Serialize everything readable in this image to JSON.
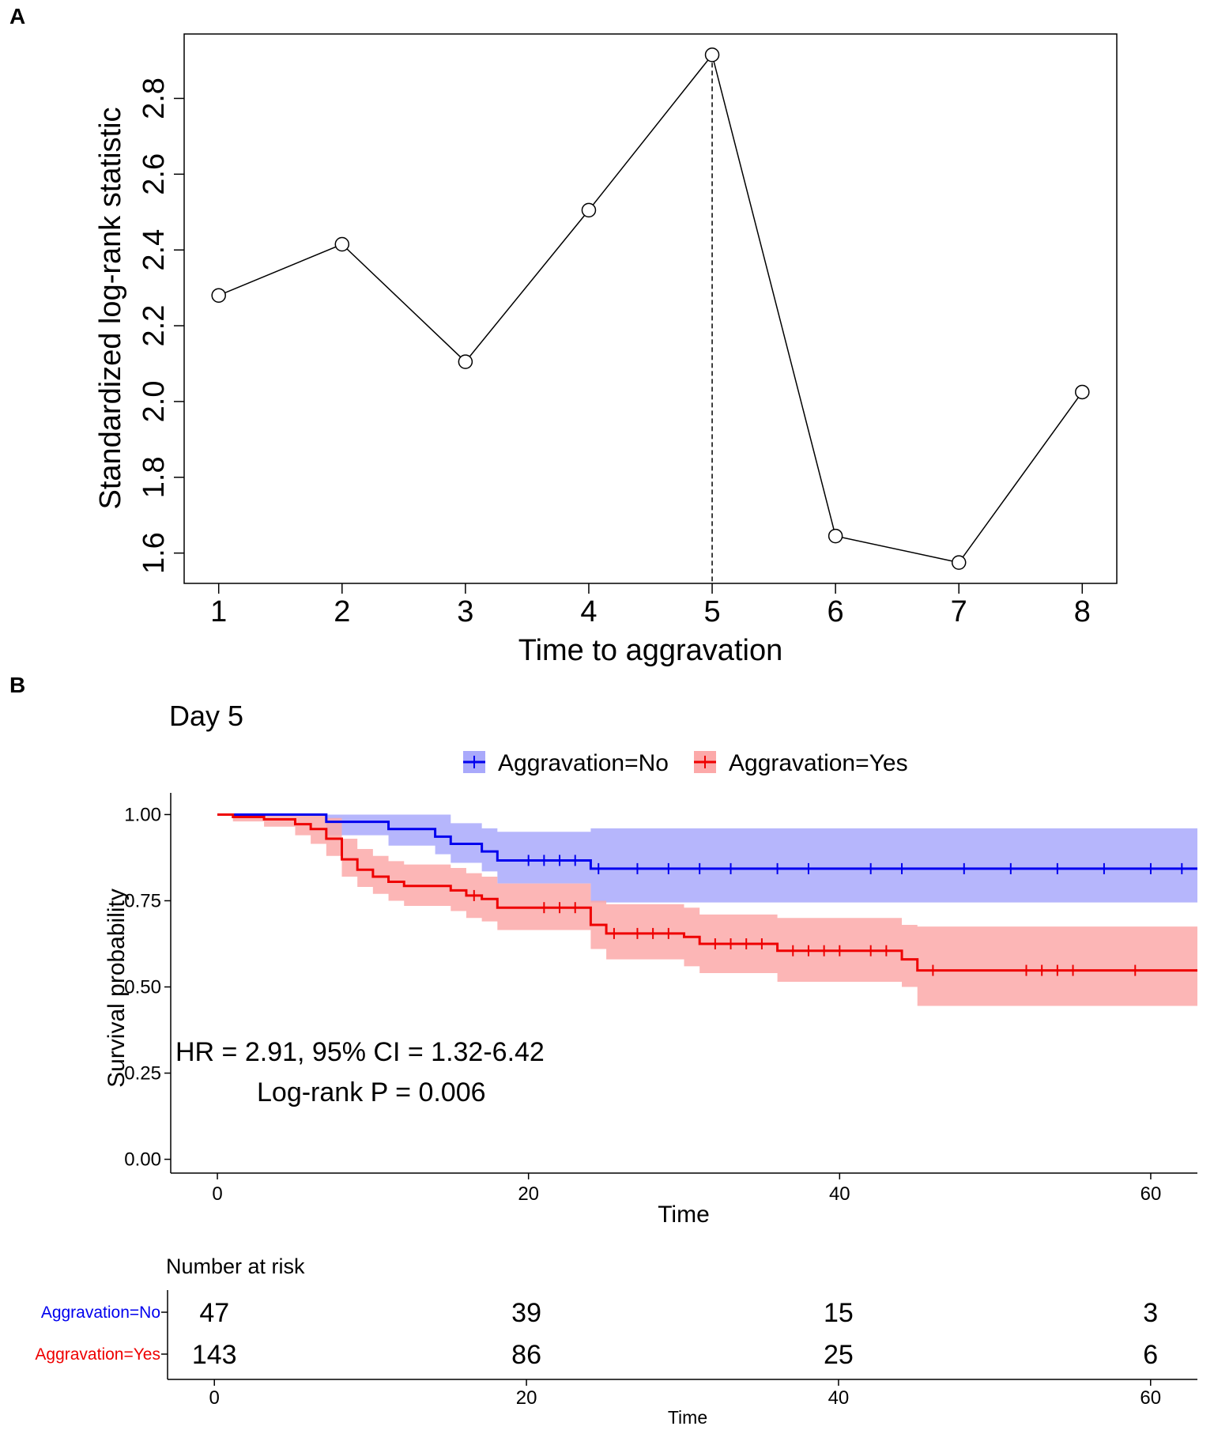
{
  "chart_data": [
    {
      "panel": "A",
      "type": "line",
      "title": "",
      "xlabel": "Time to aggravation",
      "ylabel": "Standardized log-rank statistic",
      "x": [
        1,
        2,
        3,
        4,
        5,
        6,
        7,
        8
      ],
      "y": [
        2.28,
        2.415,
        2.105,
        2.505,
        2.915,
        1.645,
        1.575,
        2.025
      ],
      "xlim": [
        0.72,
        8.28
      ],
      "ylim": [
        1.52,
        2.97
      ],
      "xticks": [
        "1",
        "2",
        "3",
        "4",
        "5",
        "6",
        "7",
        "8"
      ],
      "yticks": [
        "1.6",
        "1.8",
        "2.0",
        "2.2",
        "2.4",
        "2.6",
        "2.8"
      ],
      "cutoff_x": 5
    },
    {
      "panel": "B",
      "type": "line",
      "subtype": "kaplan-meier",
      "title": "Day 5",
      "xlabel": "Time",
      "ylabel": "Survival probability",
      "xlim": [
        -3,
        63
      ],
      "ylim": [
        -0.04,
        1.04
      ],
      "xticks": [
        "0",
        "20",
        "40",
        "60"
      ],
      "yticks": [
        "0.00",
        "0.25",
        "0.50",
        "0.75",
        "1.00"
      ],
      "legend": {
        "placement": "top",
        "entries": [
          "Aggravation=No",
          "Aggravation=Yes"
        ]
      },
      "annotations": {
        "hr": "HR = 2.91, 95% CI = 1.32-6.42",
        "p": "Log-rank P = 0.006"
      },
      "series": [
        {
          "name": "Aggravation=No",
          "color": "#0000ee",
          "ci_color": "#a9a9fb",
          "times": [
            0,
            7,
            11,
            14,
            15,
            17,
            18,
            24,
            63
          ],
          "surv": [
            1.0,
            0.979,
            0.958,
            0.936,
            0.915,
            0.893,
            0.867,
            0.843,
            0.843
          ],
          "lower": [
            1.0,
            0.94,
            0.91,
            0.885,
            0.86,
            0.835,
            0.8,
            0.745,
            0.745
          ],
          "upper": [
            1.0,
            1.0,
            1.0,
            1.0,
            0.975,
            0.96,
            0.95,
            0.96,
            0.96
          ],
          "censor_times": [
            20,
            21,
            22,
            23,
            24.5,
            27,
            29,
            31,
            33,
            36,
            38,
            42,
            44,
            48,
            51,
            54,
            57,
            60,
            62
          ],
          "censor_surv": [
            0.867,
            0.867,
            0.867,
            0.867,
            0.843,
            0.843,
            0.843,
            0.843,
            0.843,
            0.843,
            0.843,
            0.843,
            0.843,
            0.843,
            0.843,
            0.843,
            0.843,
            0.843,
            0.843
          ]
        },
        {
          "name": "Aggravation=Yes",
          "color": "#ee0000",
          "ci_color": "#fca9a9",
          "times": [
            0,
            1,
            3,
            5,
            6,
            7,
            8,
            9,
            10,
            11,
            12,
            15,
            16,
            17,
            18,
            24,
            25,
            30,
            31,
            36,
            44,
            45,
            63
          ],
          "surv": [
            1.0,
            0.993,
            0.986,
            0.972,
            0.958,
            0.93,
            0.87,
            0.84,
            0.82,
            0.805,
            0.793,
            0.78,
            0.765,
            0.755,
            0.73,
            0.68,
            0.655,
            0.645,
            0.625,
            0.605,
            0.58,
            0.548,
            0.548
          ],
          "lower": [
            1.0,
            0.98,
            0.965,
            0.94,
            0.915,
            0.88,
            0.82,
            0.79,
            0.77,
            0.75,
            0.735,
            0.72,
            0.7,
            0.69,
            0.665,
            0.61,
            0.58,
            0.56,
            0.54,
            0.515,
            0.5,
            0.445,
            0.445
          ],
          "upper": [
            1.0,
            1.0,
            1.0,
            1.0,
            1.0,
            0.99,
            0.93,
            0.9,
            0.88,
            0.865,
            0.855,
            0.845,
            0.83,
            0.82,
            0.8,
            0.75,
            0.74,
            0.73,
            0.71,
            0.7,
            0.68,
            0.675,
            0.675
          ],
          "censor_times": [
            16.5,
            21,
            22,
            23,
            25.5,
            27,
            28,
            29,
            32,
            33,
            34,
            35,
            37,
            38,
            39,
            40,
            42,
            43,
            46,
            52,
            53,
            54,
            55,
            59
          ],
          "censor_surv": [
            0.765,
            0.73,
            0.73,
            0.73,
            0.655,
            0.655,
            0.655,
            0.655,
            0.625,
            0.625,
            0.625,
            0.625,
            0.605,
            0.605,
            0.605,
            0.605,
            0.605,
            0.605,
            0.548,
            0.548,
            0.548,
            0.548,
            0.548,
            0.548
          ]
        }
      ]
    }
  ],
  "risk_table": {
    "title": "Number at risk",
    "xlabel": "Time",
    "times": [
      "0",
      "20",
      "40",
      "60"
    ],
    "rows": [
      {
        "label": "Aggravation=No",
        "color": "#0000ee",
        "values": [
          "47",
          "39",
          "15",
          "3"
        ]
      },
      {
        "label": "Aggravation=Yes",
        "color": "#ee0000",
        "values": [
          "143",
          "86",
          "25",
          "6"
        ]
      }
    ]
  },
  "panels": {
    "a_label": "A",
    "b_label": "B"
  }
}
